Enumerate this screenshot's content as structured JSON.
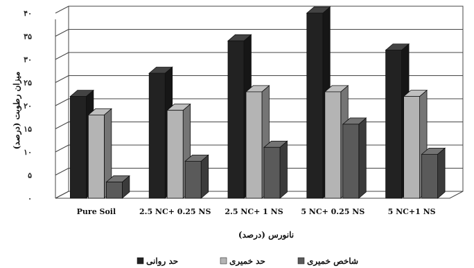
{
  "chart_data": {
    "type": "bar",
    "style": "3d-clustered",
    "categories": [
      "Pure Soil",
      "2.5 NC+ 0.25 NS",
      "2.5 NC+ 1 NS",
      "5 NC+ 0.25 NS",
      "5 NC+1 NS"
    ],
    "series": [
      {
        "name": "حد روانی",
        "color": "#222222",
        "values": [
          22,
          27,
          34,
          40,
          32
        ]
      },
      {
        "name": "حد خمیری",
        "color": "#b4b4b4",
        "values": [
          18,
          19,
          23,
          23,
          22
        ]
      },
      {
        "name": "شاخص خمیری",
        "color": "#5a5a5a",
        "values": [
          3.5,
          8,
          11,
          16,
          9.5
        ]
      }
    ],
    "ylim": [
      0,
      40
    ],
    "y_ticks": [
      "۰",
      "۵",
      "۱۰",
      "۱۵",
      "۲۰",
      "۲۵",
      "۳۰",
      "۳۵",
      "۴۰"
    ],
    "xlabel": "نانورس (درصد)",
    "ylabel": "میزان رطوبت (درصد)",
    "grid": true,
    "legend_position": "bottom"
  }
}
